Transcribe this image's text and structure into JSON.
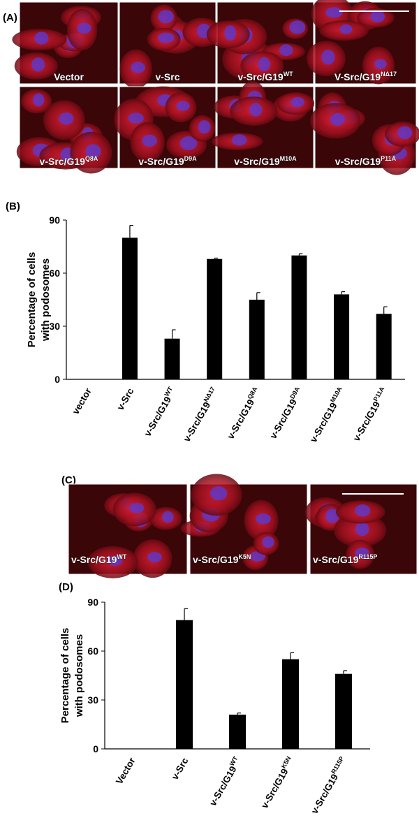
{
  "panel_a": {
    "label": "(A)",
    "images": [
      {
        "text": "Vector"
      },
      {
        "text": "v-Src"
      },
      {
        "text": "v-Src/G19",
        "sup": "WT"
      },
      {
        "text": "V-Src/G19",
        "sup": "NΔ17"
      },
      {
        "text": "v-Src/G19",
        "sup": "Q8A"
      },
      {
        "text": "v-Src/G19",
        "sup": "D9A"
      },
      {
        "text": "v-Src/G19",
        "sup": "M10A"
      },
      {
        "text": "v-Src/G19",
        "sup": "P11A"
      }
    ]
  },
  "panel_c": {
    "label": "(C)",
    "images": [
      {
        "text": "v-Src/G19",
        "sup": "WT"
      },
      {
        "text": "v-Src/G19",
        "sup": "K5N"
      },
      {
        "text": "v-Src/G19",
        "sup": "R115P"
      }
    ]
  },
  "chart_data": [
    {
      "type": "bar",
      "panel": "(B)",
      "ylabel": [
        "Percentage of cells",
        "with podosomes"
      ],
      "categories": [
        "vector",
        "v-Src",
        "v-Src/G19",
        "v-Src/G19",
        "v-Src/G19",
        "v-Src/G19",
        "v-Src/G19",
        "v-Src/G19"
      ],
      "category_sups": [
        null,
        null,
        "WT",
        "NΔ17",
        "Q8A",
        "D9A",
        "M10A",
        "P11A"
      ],
      "values": [
        0,
        80,
        23,
        68,
        45,
        70,
        48,
        37
      ],
      "errors": [
        0,
        7,
        5,
        0.5,
        4,
        1,
        1.5,
        4
      ],
      "color": "#000000",
      "ylim": [
        0,
        90
      ],
      "yticks": [
        0,
        30,
        60,
        90
      ]
    },
    {
      "type": "bar",
      "panel": "(D)",
      "ylabel": [
        "Percentage of cells",
        "with podosomes"
      ],
      "categories": [
        "Vector",
        "v-Src",
        "v-Src/G19",
        "v-Src/G19",
        "v-Src/G19"
      ],
      "category_sups": [
        null,
        null,
        "WT",
        "K5N",
        "R115P"
      ],
      "values": [
        0,
        79,
        21,
        55,
        46
      ],
      "errors": [
        0,
        7,
        1,
        4,
        2
      ],
      "color": "#000000",
      "ylim": [
        0,
        90
      ],
      "yticks": [
        0,
        30,
        60,
        90
      ]
    }
  ]
}
